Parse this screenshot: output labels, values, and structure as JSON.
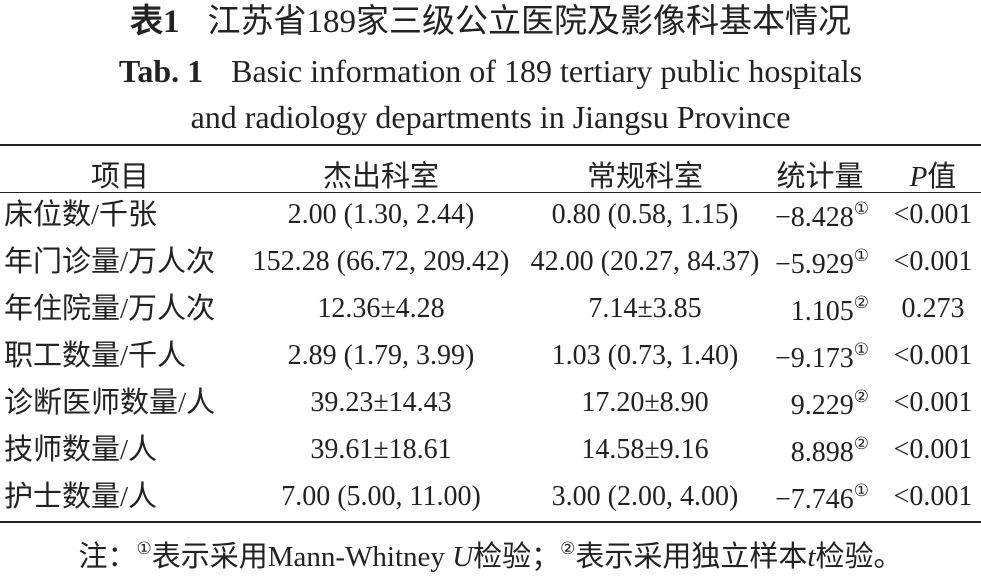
{
  "title": {
    "label": "表1",
    "text": "江苏省189家三级公立医院及影像科基本情况"
  },
  "subtitle": {
    "label": "Tab. 1",
    "lines": [
      "Basic information of 189 tertiary public hospitals",
      "and radiology departments in Jiangsu Province"
    ]
  },
  "table": {
    "header": {
      "item": "项目",
      "excellent": "杰出科室",
      "regular": "常规科室",
      "stat": "统计量",
      "p_symbol": "P",
      "p_text": "值"
    },
    "rows": [
      {
        "item": "床位数/千张",
        "excellent": "2.00 (1.30, 2.44)",
        "regular": "0.80 (0.58, 1.15)",
        "stat": "−8.428",
        "stat_note": "①",
        "p": "<0.001"
      },
      {
        "item": "年门诊量/万人次",
        "excellent": "152.28 (66.72, 209.42)",
        "regular": "42.00 (20.27, 84.37)",
        "stat": "−5.929",
        "stat_note": "①",
        "p": "<0.001"
      },
      {
        "item": "年住院量/万人次",
        "excellent": "12.36±4.28",
        "regular": "7.14±3.85",
        "stat": "1.105",
        "stat_note": "②",
        "p": "0.273"
      },
      {
        "item": "职工数量/千人",
        "excellent": "2.89 (1.79, 3.99)",
        "regular": "1.03 (0.73, 1.40)",
        "stat": "−9.173",
        "stat_note": "①",
        "p": "<0.001"
      },
      {
        "item": "诊断医师数量/人",
        "excellent": "39.23±14.43",
        "regular": "17.20±8.90",
        "stat": "9.229",
        "stat_note": "②",
        "p": "<0.001"
      },
      {
        "item": "技师数量/人",
        "excellent": "39.61±18.61",
        "regular": "14.58±9.16",
        "stat": "8.898",
        "stat_note": "②",
        "p": "<0.001"
      },
      {
        "item": "护士数量/人",
        "excellent": "7.00 (5.00, 11.00)",
        "regular": "3.00 (2.00, 4.00)",
        "stat": "−7.746",
        "stat_note": "①",
        "p": "<0.001"
      }
    ]
  },
  "note": [
    {
      "text": "注："
    },
    {
      "text": "①",
      "sup": true
    },
    {
      "text": "表示采用Mann-Whitney "
    },
    {
      "text": "U",
      "italic": true
    },
    {
      "text": "检验；"
    },
    {
      "text": "②",
      "sup": true
    },
    {
      "text": "表示采用独立样本"
    },
    {
      "text": "t",
      "italic": true
    },
    {
      "text": "检验。"
    }
  ]
}
